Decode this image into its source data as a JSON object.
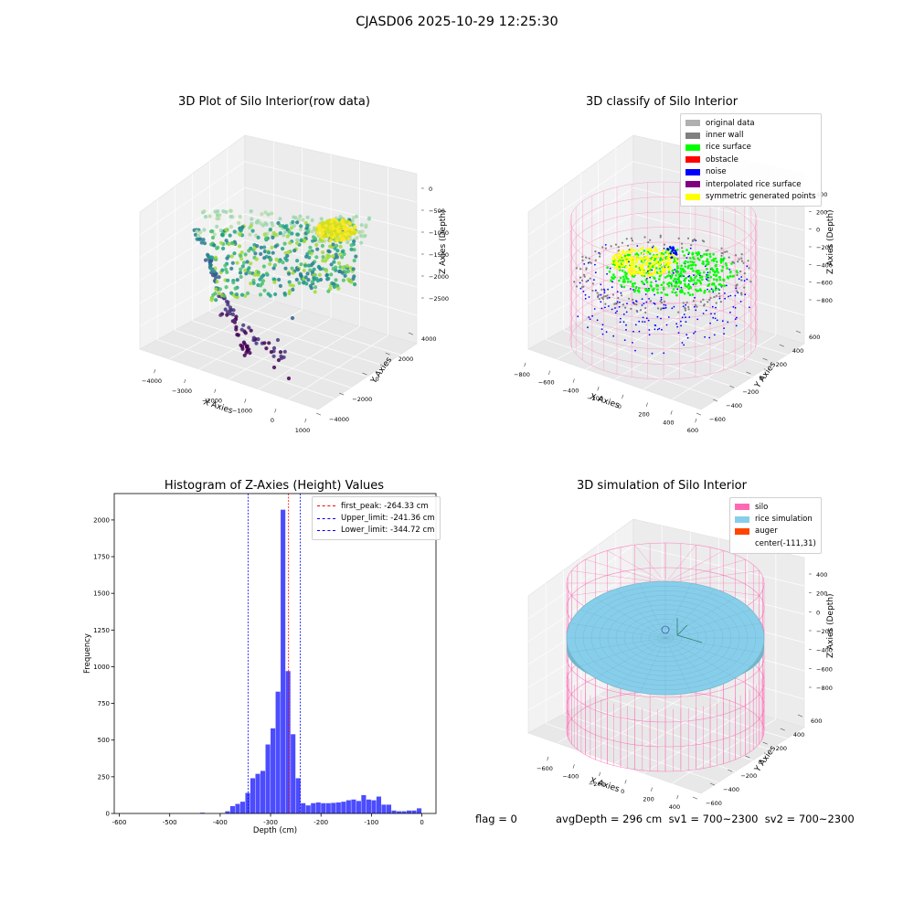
{
  "figure": {
    "suptitle": "CJASD06 2025-10-29 12:25:30"
  },
  "chart_data": [
    {
      "type": "scatter",
      "projection": "3d",
      "title": "3D Plot of Silo Interior(row data)",
      "xlabel": "X Axies",
      "ylabel": "Y Axies",
      "zlabel": "Z Axies (Depth)",
      "x_ticks": [
        "−4000",
        "−3000",
        "−2000",
        "−1000",
        "0",
        "1000"
      ],
      "y_ticks": [
        "−4000",
        "−2000",
        "0",
        "2000",
        "4000"
      ],
      "z_ticks": [
        "0",
        "−500",
        "−1000",
        "−1500",
        "−2000",
        "−2500"
      ],
      "colormap": "viridis"
    },
    {
      "type": "scatter",
      "projection": "3d",
      "title": "3D classify of Silo Interior",
      "xlabel": "X Axies",
      "ylabel": "Y Axies",
      "zlabel": "Z Axies (Depth)",
      "x_ticks": [
        "−800",
        "−600",
        "−400",
        "−200",
        "0",
        "200",
        "400",
        "600"
      ],
      "y_ticks": [
        "−600",
        "−400",
        "−200",
        "0",
        "200",
        "400",
        "600"
      ],
      "z_ticks": [
        "400",
        "200",
        "0",
        "−200",
        "−400",
        "−600",
        "−800"
      ],
      "legend": [
        {
          "label": "original data",
          "color": "#b0b0b0"
        },
        {
          "label": "inner wall",
          "color": "#808080"
        },
        {
          "label": "rice surface",
          "color": "#00ff00"
        },
        {
          "label": "obstacle",
          "color": "#ff0000"
        },
        {
          "label": "noise",
          "color": "#0000ff"
        },
        {
          "label": "interpolated rice surface",
          "color": "#800080"
        },
        {
          "label": "symmetric generated points",
          "color": "#ffff00"
        }
      ]
    },
    {
      "type": "bar",
      "title": "Histogram of Z-Axies (Height) Values",
      "xlabel": "Depth (cm)",
      "ylabel": "Frequency",
      "xlim": [
        -610,
        28
      ],
      "ylim": [
        0,
        2180
      ],
      "x_ticks": [
        -600,
        -500,
        -400,
        -300,
        -200,
        -100,
        0
      ],
      "y_ticks": [
        0,
        250,
        500,
        750,
        1000,
        1250,
        1500,
        1750,
        2000
      ],
      "bar_color": "#0000ff",
      "bins": [
        {
          "x0": -440,
          "x1": -430,
          "value": 5
        },
        {
          "x0": -400,
          "x1": -390,
          "value": 3
        },
        {
          "x0": -390,
          "x1": -380,
          "value": 15
        },
        {
          "x0": -380,
          "x1": -370,
          "value": 50
        },
        {
          "x0": -370,
          "x1": -360,
          "value": 65
        },
        {
          "x0": -360,
          "x1": -350,
          "value": 80
        },
        {
          "x0": -350,
          "x1": -340,
          "value": 140
        },
        {
          "x0": -340,
          "x1": -330,
          "value": 240
        },
        {
          "x0": -330,
          "x1": -320,
          "value": 270
        },
        {
          "x0": -320,
          "x1": -310,
          "value": 290
        },
        {
          "x0": -310,
          "x1": -300,
          "value": 470
        },
        {
          "x0": -300,
          "x1": -290,
          "value": 580
        },
        {
          "x0": -290,
          "x1": -280,
          "value": 830
        },
        {
          "x0": -280,
          "x1": -270,
          "value": 2070
        },
        {
          "x0": -270,
          "x1": -260,
          "value": 970
        },
        {
          "x0": -260,
          "x1": -250,
          "value": 540
        },
        {
          "x0": -250,
          "x1": -240,
          "value": 240
        },
        {
          "x0": -240,
          "x1": -230,
          "value": 70
        },
        {
          "x0": -230,
          "x1": -220,
          "value": 55
        },
        {
          "x0": -220,
          "x1": -210,
          "value": 70
        },
        {
          "x0": -210,
          "x1": -200,
          "value": 75
        },
        {
          "x0": -200,
          "x1": -190,
          "value": 70
        },
        {
          "x0": -190,
          "x1": -180,
          "value": 70
        },
        {
          "x0": -180,
          "x1": -170,
          "value": 72
        },
        {
          "x0": -170,
          "x1": -160,
          "value": 75
        },
        {
          "x0": -160,
          "x1": -150,
          "value": 80
        },
        {
          "x0": -150,
          "x1": -140,
          "value": 90
        },
        {
          "x0": -140,
          "x1": -130,
          "value": 95
        },
        {
          "x0": -130,
          "x1": -120,
          "value": 85
        },
        {
          "x0": -120,
          "x1": -110,
          "value": 125
        },
        {
          "x0": -110,
          "x1": -100,
          "value": 95
        },
        {
          "x0": -100,
          "x1": -90,
          "value": 90
        },
        {
          "x0": -90,
          "x1": -80,
          "value": 115
        },
        {
          "x0": -80,
          "x1": -70,
          "value": 60
        },
        {
          "x0": -70,
          "x1": -60,
          "value": 60
        },
        {
          "x0": -60,
          "x1": -50,
          "value": 20
        },
        {
          "x0": -50,
          "x1": -40,
          "value": 15
        },
        {
          "x0": -40,
          "x1": -30,
          "value": 15
        },
        {
          "x0": -30,
          "x1": -20,
          "value": 20
        },
        {
          "x0": -20,
          "x1": -10,
          "value": 20
        },
        {
          "x0": -10,
          "x1": 0,
          "value": 35
        }
      ],
      "vlines": [
        {
          "label": "first_peak: -264.33 cm",
          "x": -264.33,
          "color": "#ff0000"
        },
        {
          "label": "Upper_limit: -241.36 cm",
          "x": -241.36,
          "color": "#0000ff"
        },
        {
          "label": "Lower_limit: -344.72 cm",
          "x": -344.72,
          "color": "#0000ff"
        }
      ],
      "legend_position": "top-right"
    },
    {
      "type": "scatter",
      "projection": "3d",
      "title": "3D simulation of Silo Interior",
      "xlabel": "X Axies",
      "ylabel": "Y Axies",
      "zlabel": "Z Axies (Depth)",
      "x_ticks": [
        "−600",
        "−400",
        "−200",
        "0",
        "200",
        "400"
      ],
      "y_ticks": [
        "−600",
        "−400",
        "−200",
        "0",
        "200",
        "400",
        "600"
      ],
      "z_ticks": [
        "400",
        "200",
        "0",
        "−200",
        "−400",
        "−600",
        "−800"
      ],
      "legend": [
        {
          "label": "silo",
          "color": "#ff69b4"
        },
        {
          "label": "rice simulation",
          "color": "#87ceeb"
        },
        {
          "label": "auger",
          "color": "#ff4500"
        },
        {
          "label": "center(-111,31)",
          "color": ""
        }
      ]
    }
  ],
  "footer": {
    "flag": "flag = 0",
    "avg": "avgDepth = 296 cm  sv1 = 700~2300  sv2 = 700~2300"
  }
}
